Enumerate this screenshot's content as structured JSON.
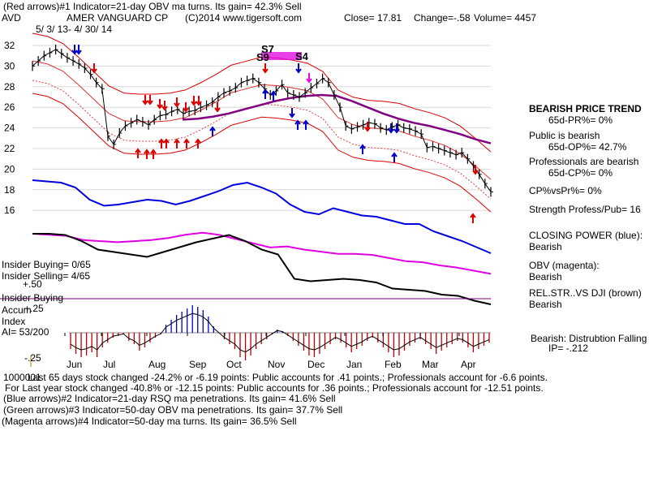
{
  "header": {
    "line1": "(Red arrows)#1 Indicator=21-day OBV ma turns. Its gain= 42.3% Sell",
    "ticker": "AVD",
    "company": "AMER VANGUARD CP",
    "copyright": "(C)2014 www.tigersoft.com",
    "close": "Close=  17.81",
    "change": "Change=-.58",
    "volume": "Volume= 4457",
    "date_range": "5/ 3/ 13-  4/ 30/ 14"
  },
  "annotations": {
    "s7": "S7",
    "s9": "S9",
    "s4": "S4"
  },
  "panel_labels": {
    "insider_buying_count": "Insider Buying= 0/65",
    "insider_selling_count": "Insider Selling= 4/65",
    "plus50": "+.50",
    "insider_buying": "Insider Buying",
    "accum": "Accum",
    "plus25": "+.25",
    "index": "Index",
    "ai": "AI= 53/200",
    "minus25": "-.25"
  },
  "right_panel": {
    "trend": "BEARISH PRICE TREND",
    "pr": "65d-PR%= 0%",
    "public": "Public is bearish",
    "op": "65d-OP%= 42.7%",
    "professionals": "Professionals are bearish",
    "cp": "65d-CP%= 0%",
    "cpvspr": "CP%vsPr%=  0%",
    "strength": "Strength Profess/Pub= 16",
    "closing_power": "CLOSING POWER (blue):",
    "cp_state": "Bearish",
    "obv": "OBV (magenta):",
    "obv_state": "Bearish",
    "relstr": "REL.STR..VS DJI (brown)",
    "relstr_state": "Bearish",
    "distribution": "Bearish: Distrubtion Falling",
    "ip": "IP= -.212"
  },
  "footer": {
    "line1": "Last 65 days stock changed -24.2% or -6.19 points:  Public accounts for  .41 points.;  Professionals account for -6.6 points.",
    "overlap": "1000001",
    "line2": "For Last year stock changed -40.8% or -12.15 points:  Public accounts for  .36 points.;  Professionals account for -12.51 points.",
    "line3": "(Blue arrows)#2 Indicator=21-day RSQ ma penetrations. Its gain= 41.6% Sell",
    "line4": "(Green arrows)#3 Indicator=50-day OBV ma penetrations. Its gain= 37.7% Sell",
    "line5": "(Magenta arrows)#4 Indicator=50-day ma turns. Its gain= 36.5% Sell"
  },
  "chart_data": {
    "type": "line",
    "y_ticks": [
      "32",
      "30",
      "28",
      "26",
      "24",
      "22",
      "20",
      "18",
      "16"
    ],
    "ylim": [
      15,
      33
    ],
    "x_ticks": [
      "Jun",
      "Jul",
      "Aug",
      "Sep",
      "Oct",
      "Nov",
      "Dec",
      "Jan",
      "Feb",
      "Mar",
      "Apr"
    ],
    "price_close": [
      30,
      30.5,
      31,
      31.3,
      31.6,
      31.2,
      30.8,
      30.5,
      30.2,
      29.8,
      29.2,
      28.4,
      27.8,
      23.2,
      22.4,
      23.5,
      24.2,
      24.5,
      24.8,
      24.6,
      24.3,
      24.8,
      25.2,
      25.3,
      25.6,
      25.8,
      25.4,
      25.6,
      25.7,
      26.0,
      26.2,
      26.5,
      27.0,
      27.4,
      27.6,
      27.9,
      28.4,
      28.6,
      28.8,
      28.4,
      27.8,
      27.2,
      27.6,
      28.2,
      27.4,
      27.2,
      27.0,
      27.4,
      27.9,
      28.3,
      28.8,
      28.4,
      27.2,
      26.0,
      24.2,
      23.9,
      24.1,
      24.3,
      24.5,
      24.4,
      24.0,
      23.8,
      24.1,
      24.3,
      24.0,
      23.9,
      23.7,
      23.4,
      22.1,
      22.2,
      22.0,
      21.8,
      21.6,
      21.4,
      21.6,
      21.0,
      20.3,
      19.5,
      18.6,
      17.8
    ],
    "ma21": [
      30.5,
      30.2,
      29.5,
      28.2,
      26.8,
      25.4,
      24.7,
      24.6,
      24.6,
      24.7,
      25.0,
      25.7,
      26.5,
      27.4,
      27.8,
      28.2,
      28.1,
      27.9,
      27.6,
      26.8,
      25.0,
      24.3,
      24.0,
      23.9,
      23.7,
      23.2,
      22.8,
      22.3,
      21.5,
      20.3,
      19.0
    ],
    "ma50": [
      24.8,
      24.9,
      25.1,
      25.4,
      25.8,
      26.2,
      26.6,
      26.9,
      27.1,
      27.2,
      27.1,
      26.6,
      26.0,
      25.4,
      24.9,
      24.5,
      24.2,
      23.8,
      23.4,
      22.9,
      22.5
    ],
    "closing_power": [
      21.2,
      21.1,
      21.0,
      20.6,
      19.6,
      19.1,
      19.2,
      19.4,
      19.6,
      19.5,
      19.2,
      19.5,
      19.9,
      20.3,
      20.8,
      21.0,
      20.6,
      20.1,
      19.2,
      18.6,
      18.4,
      18.9,
      18.6,
      18.3,
      18.2,
      17.9,
      17.6,
      17.6,
      17.0,
      16.6,
      16.2,
      15.7,
      15.2
    ],
    "obv": [
      16.5,
      16.4,
      16.3,
      15.9,
      15.8,
      15.7,
      15.8,
      15.9,
      16.1,
      16.4,
      16.6,
      16.4,
      16.0,
      15.6,
      15.2,
      15.3,
      15.0,
      14.8,
      14.6,
      14.6,
      14.5,
      14.2,
      13.9,
      13.8,
      13.5,
      13.3,
      13.0,
      12.7
    ],
    "rel_str": [
      16.7,
      16.7,
      16.6,
      16.1,
      15.4,
      15.2,
      15.0,
      14.8,
      15.2,
      15.6,
      16.0,
      16.3,
      16.6,
      16.1,
      15.4,
      15.0,
      13.0,
      12.8,
      12.9,
      13.0,
      12.9,
      12.7,
      12.2,
      12.1,
      12.0,
      11.7,
      11.6,
      11.2,
      10.9
    ]
  }
}
